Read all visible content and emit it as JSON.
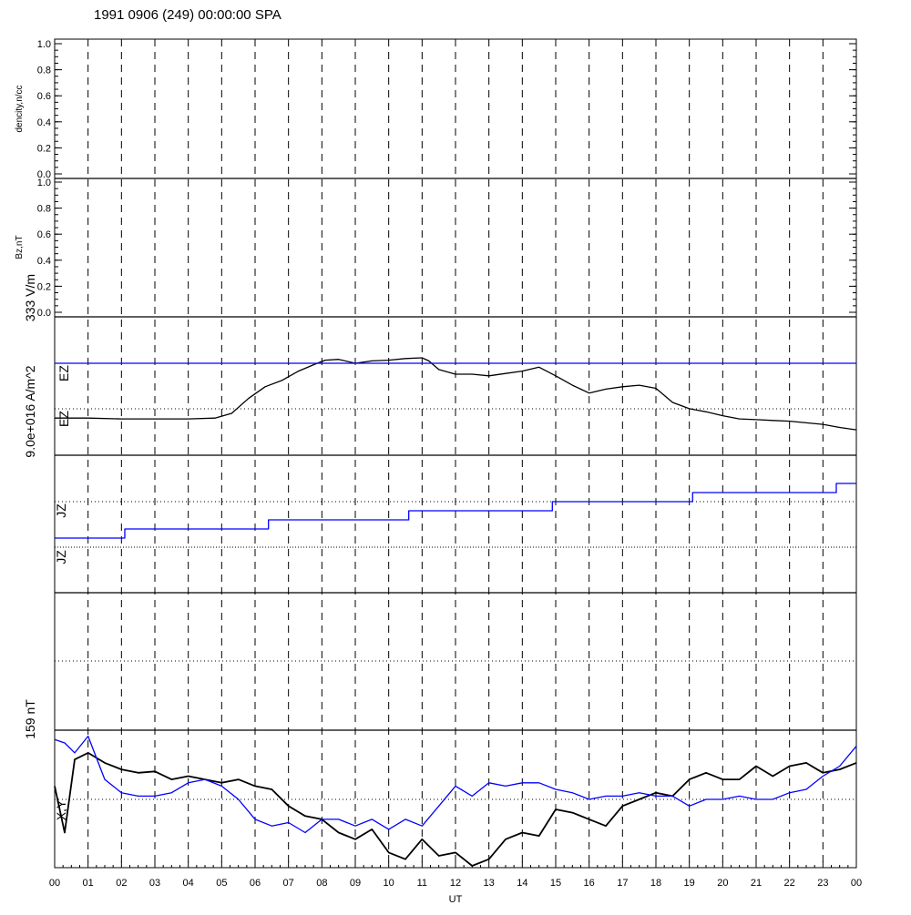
{
  "title": "1991 0906 (249) 00:00:00 SPA",
  "xlabel": "UT",
  "colors": {
    "black": "#000000",
    "blue": "#0000ff"
  },
  "chart_data": {
    "type": "line",
    "title": "1991 0906 (249) 00:00:00 SPA",
    "xlabel": "UT",
    "x_ticks": [
      "00",
      "01",
      "02",
      "03",
      "04",
      "05",
      "06",
      "07",
      "08",
      "09",
      "10",
      "11",
      "12",
      "13",
      "14",
      "15",
      "16",
      "17",
      "18",
      "19",
      "20",
      "21",
      "22",
      "23",
      "00"
    ],
    "xlim": [
      0,
      24
    ],
    "grid": "dashed vertical lines each hour",
    "panels": [
      {
        "id": "density",
        "ylabel": "dencity,n/cc",
        "ylim": [
          0,
          1
        ],
        "yticks": [
          "0.0",
          "0.2",
          "0.4",
          "0.6",
          "0.8",
          "1.0"
        ],
        "series": []
      },
      {
        "id": "bz",
        "ylabel": "Bz,nT",
        "ylim": [
          0,
          1
        ],
        "yticks": [
          "0.0",
          "0.2",
          "0.4",
          "0.6",
          "0.8",
          "1.0"
        ],
        "series": []
      },
      {
        "id": "ez",
        "labels": [
          "EZ",
          "EZ"
        ],
        "scale_label": "333 V/m",
        "series": [
          {
            "color": "black",
            "x": [
              0,
              1,
              2,
              3,
              4,
              4.8,
              5.3,
              5.8,
              6.3,
              6.8,
              7.3,
              7.8,
              8.1,
              8.5,
              9,
              9.5,
              10,
              10.5,
              11,
              11.2,
              11.5,
              12,
              12.5,
              13,
              13.5,
              14,
              14.5,
              15,
              15.5,
              16,
              16.5,
              17,
              17.5,
              18,
              18.5,
              19,
              19.5,
              20,
              20.5,
              21,
              21.5,
              22,
              22.5,
              23,
              23.5,
              24
            ],
            "y": [
              0.3,
              0.3,
              0.29,
              0.29,
              0.29,
              0.3,
              0.36,
              0.55,
              0.7,
              0.78,
              0.9,
              0.99,
              1.04,
              1.05,
              1.0,
              1.03,
              1.04,
              1.06,
              1.07,
              1.03,
              0.92,
              0.86,
              0.86,
              0.84,
              0.87,
              0.9,
              0.95,
              0.84,
              0.72,
              0.62,
              0.67,
              0.7,
              0.72,
              0.68,
              0.5,
              0.42,
              0.38,
              0.33,
              0.29,
              0.28,
              0.27,
              0.26,
              0.24,
              0.22,
              0.18,
              0.15
            ]
          },
          {
            "color": "blue",
            "x": [
              0,
              24
            ],
            "y": [
              1,
              1
            ]
          }
        ]
      },
      {
        "id": "jz",
        "labels": [
          "JZ",
          "JZ"
        ],
        "scale_label": "9.0e+016 A/m^2",
        "series": [
          {
            "color": "blue",
            "x": [
              0,
              2.1,
              2.1,
              6.4,
              6.4,
              10.6,
              10.6,
              14.9,
              14.9,
              19.1,
              19.1,
              23.4,
              23.4,
              24
            ],
            "y": [
              0.2,
              0.2,
              0.4,
              0.4,
              0.6,
              0.6,
              0.8,
              0.8,
              1.0,
              1.0,
              1.2,
              1.2,
              1.4,
              1.4
            ]
          }
        ]
      },
      {
        "id": "xy",
        "labels": [
          "X,Y"
        ],
        "scale_label": "159 nT",
        "series": [
          {
            "color": "black",
            "x": [
              0,
              0.3,
              0.6,
              1,
              1.5,
              2,
              2.5,
              3,
              3.5,
              4,
              4.5,
              5,
              5.5,
              6,
              6.5,
              7,
              7.5,
              8,
              8.5,
              9,
              9.5,
              10,
              10.5,
              11,
              11.5,
              12,
              12.5,
              13,
              13.5,
              14,
              14.5,
              15,
              15.5,
              16,
              16.5,
              17,
              17.5,
              18,
              18.5,
              19,
              19.5,
              20,
              20.5,
              21,
              21.5,
              22,
              22.5,
              23,
              23.5,
              24
            ],
            "y": [
              0.2,
              -0.5,
              0.6,
              0.7,
              0.55,
              0.45,
              0.4,
              0.42,
              0.3,
              0.35,
              0.3,
              0.25,
              0.3,
              0.2,
              0.15,
              -0.1,
              -0.25,
              -0.3,
              -0.5,
              -0.6,
              -0.45,
              -0.8,
              -0.9,
              -0.6,
              -0.85,
              -0.8,
              -1.0,
              -0.9,
              -0.6,
              -0.5,
              -0.55,
              -0.15,
              -0.2,
              -0.3,
              -0.4,
              -0.1,
              0.0,
              0.1,
              0.05,
              0.3,
              0.4,
              0.3,
              0.3,
              0.5,
              0.35,
              0.5,
              0.55,
              0.4,
              0.45,
              0.55
            ]
          },
          {
            "color": "blue",
            "x": [
              0,
              0.3,
              0.6,
              1,
              1.5,
              2,
              2.5,
              3,
              3.5,
              4,
              4.5,
              5,
              5.5,
              6,
              6.5,
              7,
              7.5,
              8,
              8.5,
              9,
              9.5,
              10,
              10.5,
              11,
              11.5,
              12,
              12.5,
              13,
              13.5,
              14,
              14.5,
              15,
              15.5,
              16,
              16.5,
              17,
              17.5,
              18,
              18.5,
              19,
              19.5,
              20,
              20.5,
              21,
              21.5,
              22,
              22.5,
              23,
              23.5,
              24
            ],
            "y": [
              0.9,
              0.85,
              0.7,
              0.95,
              0.3,
              0.1,
              0.05,
              0.05,
              0.1,
              0.25,
              0.3,
              0.2,
              0.0,
              -0.3,
              -0.4,
              -0.35,
              -0.5,
              -0.3,
              -0.3,
              -0.4,
              -0.3,
              -0.45,
              -0.3,
              -0.4,
              -0.1,
              0.2,
              0.05,
              0.25,
              0.2,
              0.25,
              0.25,
              0.15,
              0.1,
              0.0,
              0.05,
              0.05,
              0.1,
              0.05,
              0.05,
              -0.1,
              0.0,
              0.0,
              0.05,
              0.0,
              0.0,
              0.1,
              0.15,
              0.35,
              0.5,
              0.8
            ]
          }
        ]
      }
    ]
  }
}
